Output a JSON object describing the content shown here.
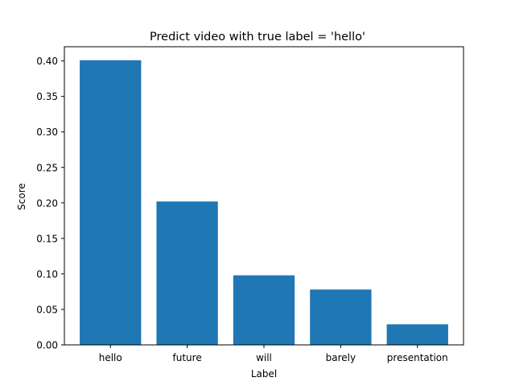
{
  "chart_data": {
    "type": "bar",
    "title": "Predict video with true label = 'hello'",
    "xlabel": "Label",
    "ylabel": "Score",
    "categories": [
      "hello",
      "future",
      "will",
      "barely",
      "presentation"
    ],
    "values": [
      0.401,
      0.202,
      0.098,
      0.078,
      0.029
    ],
    "ylim": [
      0,
      0.42
    ],
    "yticks": [
      0.0,
      0.05,
      0.1,
      0.15,
      0.2,
      0.25,
      0.3,
      0.35,
      0.4
    ],
    "ytick_labels": [
      "0.00",
      "0.05",
      "0.10",
      "0.15",
      "0.20",
      "0.25",
      "0.30",
      "0.35",
      "0.40"
    ],
    "bar_color": "#1f77b4",
    "grid": false,
    "legend": "none"
  }
}
